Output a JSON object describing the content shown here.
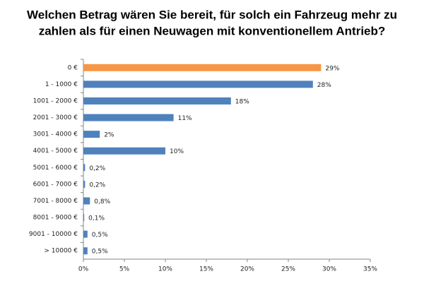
{
  "chart_data": {
    "type": "hbar",
    "title": [
      "Welchen Betrag wären Sie bereit, für solch ein Fahrzeug mehr zu",
      "zahlen als für einen Neuwagen mit konventionellem Antrieb?"
    ],
    "categories": [
      "0 €",
      "1 - 1000 €",
      "1001 - 2000 €",
      "2001 - 3000 €",
      "3001 - 4000 €",
      "4001 - 5000 €",
      "5001 - 6000 €",
      "6001 - 7000 €",
      "7001 - 8000 €",
      "8001 - 9000 €",
      "9001 - 10000 €",
      "> 10000 €"
    ],
    "values": [
      29,
      28,
      18,
      11,
      2,
      10,
      0.2,
      0.2,
      0.8,
      0.1,
      0.5,
      0.5
    ],
    "value_labels": [
      "29%",
      "28%",
      "18%",
      "11%",
      "2%",
      "10%",
      "0,2%",
      "0,2%",
      "0,8%",
      "0,1%",
      "0,5%",
      "0,5%"
    ],
    "colors": [
      "#f79646",
      "#4f81bd",
      "#4f81bd",
      "#4f81bd",
      "#4f81bd",
      "#4f81bd",
      "#4f81bd",
      "#4f81bd",
      "#4f81bd",
      "#4f81bd",
      "#4f81bd",
      "#4f81bd"
    ],
    "xlim": [
      0,
      35
    ],
    "xticks": [
      {
        "value": 0,
        "label": "0%"
      },
      {
        "value": 5,
        "label": "5%"
      },
      {
        "value": 10,
        "label": "10%"
      },
      {
        "value": 15,
        "label": "15%"
      },
      {
        "value": 20,
        "label": "20%"
      },
      {
        "value": 25,
        "label": "25%"
      },
      {
        "value": 30,
        "label": "30%"
      },
      {
        "value": 35,
        "label": "35%"
      }
    ]
  }
}
